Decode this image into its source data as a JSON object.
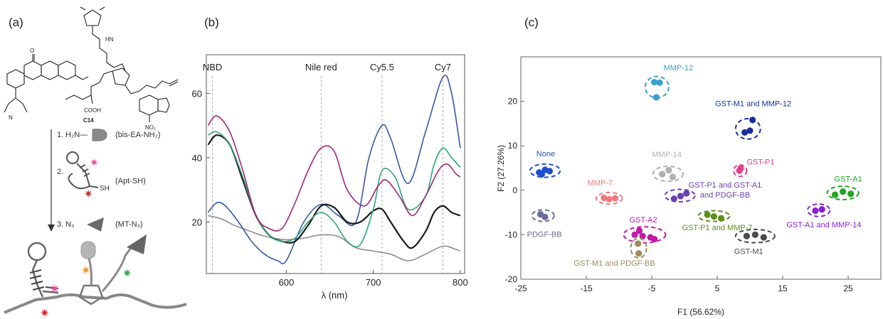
{
  "panels": {
    "a": {
      "label": "(a)",
      "molecule_label": "C14",
      "molecule_substituents": {
        "nh": "HN",
        "o": "O",
        "cooh": "COOH",
        "no2": "NO₂",
        "n": "N"
      },
      "steps": [
        {
          "index": "1.",
          "reagent_prefix": "H₂N—",
          "name": "(bis-EA-NH₂)"
        },
        {
          "index": "2.",
          "reagent_prefix": "",
          "name": "(Apt-SH)",
          "tag": "SH"
        },
        {
          "index": "3.",
          "reagent_prefix": "N₃",
          "name": "(MT-N₃)"
        }
      ]
    },
    "b": {
      "label": "(b)"
    },
    "c": {
      "label": "(c)"
    }
  },
  "colors": {
    "grey": "#8e8e8e",
    "black": "#1a1a1a",
    "green": "#2fa77c",
    "magenta": "#a4237f",
    "blue": "#3657a8",
    "pink_star": "#e0559a",
    "red_star": "#d42b2b",
    "orange_star": "#f0943a",
    "green_star": "#3aa54a"
  },
  "chart_data": [
    {
      "type": "line",
      "xlabel": "λ (nm)",
      "ylabel": "",
      "xlim": [
        508,
        805
      ],
      "ylim": [
        4,
        72
      ],
      "xticks": [
        600,
        700,
        800
      ],
      "yticks": [
        20,
        40,
        60
      ],
      "grid": false,
      "reference_lines": [
        {
          "label": "NBD",
          "x": 515
        },
        {
          "label": "Nile red",
          "x": 640
        },
        {
          "label": "Cy5.5",
          "x": 710
        },
        {
          "label": "Cy7",
          "x": 780
        }
      ],
      "series": [
        {
          "color": "#8e8e8e",
          "x": [
            510,
            525,
            540,
            555,
            570,
            585,
            600,
            620,
            640,
            660,
            680,
            700,
            720,
            740,
            760,
            780,
            795,
            800
          ],
          "y": [
            22,
            21,
            19,
            17.5,
            16,
            15,
            14.5,
            15,
            16,
            15.5,
            12,
            11,
            10,
            8,
            10,
            12.5,
            11.5,
            11
          ]
        },
        {
          "color": "#3657a8",
          "x": [
            510,
            520,
            530,
            545,
            560,
            575,
            590,
            600,
            620,
            640,
            660,
            680,
            695,
            710,
            720,
            740,
            760,
            780,
            790,
            800
          ],
          "y": [
            23,
            26,
            25,
            20,
            14,
            10,
            8,
            8,
            20,
            25.5,
            22,
            20,
            40,
            50,
            46,
            32,
            48,
            65,
            60,
            43
          ]
        },
        {
          "color": "#1a1a1a",
          "x": [
            510,
            520,
            535,
            550,
            565,
            580,
            595,
            610,
            625,
            640,
            655,
            670,
            685,
            700,
            710,
            720,
            735,
            745,
            760,
            770,
            780,
            790,
            800
          ],
          "y": [
            44,
            47,
            44,
            33,
            22,
            16,
            14,
            14,
            19,
            25,
            24.5,
            20,
            20,
            23.5,
            24,
            20,
            14,
            12,
            17,
            23,
            25,
            23,
            22
          ]
        },
        {
          "color": "#2fa77c",
          "x": [
            510,
            520,
            535,
            550,
            565,
            580,
            595,
            610,
            625,
            640,
            655,
            670,
            685,
            700,
            710,
            725,
            740,
            760,
            770,
            780,
            790,
            800
          ],
          "y": [
            47,
            48,
            44,
            34,
            22,
            16,
            14,
            15,
            20,
            23,
            20,
            14,
            13,
            24,
            36,
            34,
            24,
            28,
            38,
            43,
            40,
            37
          ]
        },
        {
          "color": "#a4237f",
          "x": [
            510,
            520,
            535,
            550,
            565,
            580,
            595,
            610,
            625,
            640,
            655,
            670,
            690,
            705,
            715,
            730,
            745,
            760,
            775,
            785,
            795,
            800
          ],
          "y": [
            50,
            53,
            48,
            36,
            22,
            18,
            18,
            26,
            36,
            43,
            42,
            30,
            25,
            31,
            33,
            28,
            22,
            28,
            36,
            38,
            35,
            34
          ]
        }
      ]
    },
    {
      "type": "scatter",
      "xlabel": "F1 (56.62%)",
      "ylabel": "F2 (27.26%)",
      "xlim": [
        -25,
        30
      ],
      "ylim": [
        -20,
        30
      ],
      "xticks": [
        -25,
        -15,
        -5,
        5,
        15,
        25
      ],
      "yticks": [
        -20,
        -10,
        0,
        10,
        20
      ],
      "groups": [
        {
          "name": "MMP-12",
          "color": "#3aa0c8",
          "cx": -4.2,
          "cy": 23.2,
          "rx": 1.8,
          "ry": 2.4,
          "points": [
            [
              -4.6,
              24.3
            ],
            [
              -3.8,
              24.2
            ],
            [
              -4.3,
              20.9
            ]
          ],
          "lx": -3.2,
          "ly": 27.0,
          "anchor": "start"
        },
        {
          "name": "GST-M1 and MMP-12",
          "color": "#1a2f9a",
          "cx": 9.7,
          "cy": 13.8,
          "rx": 1.9,
          "ry": 2.3,
          "points": [
            [
              9.2,
              13.0
            ],
            [
              10.0,
              13.4
            ],
            [
              10.4,
              15.8
            ]
          ],
          "lx": 10.5,
          "ly": 18.9,
          "anchor": "middle"
        },
        {
          "name": "None",
          "color": "#1f4fcc",
          "cx": -21.3,
          "cy": 4.4,
          "rx": 2.3,
          "ry": 1.5,
          "points": [
            [
              -22.2,
              4.0
            ],
            [
              -21.3,
              4.6
            ],
            [
              -20.6,
              4.3
            ],
            [
              -21.8,
              3.6
            ]
          ],
          "lx": -21.2,
          "ly": 7.6,
          "anchor": "middle"
        },
        {
          "name": "PDGF-BB",
          "color": "#6a6c9a",
          "cx": -21.6,
          "cy": -5.7,
          "rx": 1.7,
          "ry": 1.3,
          "points": [
            [
              -22.0,
              -5.4
            ],
            [
              -21.3,
              -6.0
            ]
          ],
          "lx": -21.4,
          "ly": -10.5,
          "anchor": "middle"
        },
        {
          "name": "MMP-7",
          "color": "#ef7a7a",
          "cx": -11.5,
          "cy": -1.8,
          "rx": 2.0,
          "ry": 1.3,
          "points": [
            [
              -12.3,
              -1.7
            ],
            [
              -11.5,
              -2.0
            ],
            [
              -10.6,
              -1.8
            ]
          ],
          "lx": -12.9,
          "ly": 1.1,
          "anchor": "middle"
        },
        {
          "name": "MMP-14",
          "color": "#b0b0b0",
          "cx": -2.5,
          "cy": 3.7,
          "rx": 2.3,
          "ry": 1.7,
          "points": [
            [
              -3.4,
              3.6
            ],
            [
              -2.4,
              4.5
            ],
            [
              -1.8,
              3.0
            ]
          ],
          "lx": -2.7,
          "ly": 7.5,
          "anchor": "middle"
        },
        {
          "name": "GST-P1",
          "color": "#e23f8f",
          "cx": 8.5,
          "cy": 4.4,
          "rx": 1.0,
          "ry": 1.3,
          "points": [
            [
              8.4,
              4.4
            ],
            [
              8.6,
              5.0
            ]
          ],
          "lx": 9.5,
          "ly": 5.8,
          "anchor": "start"
        },
        {
          "name": "GST-P1 and GST-A1|and PDGF-BB",
          "color": "#6a3fb0",
          "cx": -0.7,
          "cy": -1.2,
          "rx": 2.3,
          "ry": 1.4,
          "points": [
            [
              -1.6,
              -1.9
            ],
            [
              -0.6,
              -1.3
            ],
            [
              0.3,
              -0.7
            ]
          ],
          "lx": 6.2,
          "ly": 0.6,
          "anchor": "middle"
        },
        {
          "name": "GST-A1",
          "color": "#1ea51e",
          "cx": 24.2,
          "cy": -0.6,
          "rx": 2.4,
          "ry": 1.5,
          "points": [
            [
              23.0,
              -1.0
            ],
            [
              24.2,
              -0.3
            ],
            [
              25.4,
              -0.8
            ]
          ],
          "lx": 25.0,
          "ly": 2.0,
          "anchor": "middle"
        },
        {
          "name": "GST-A1 and MMP-14",
          "color": "#8a1fd6",
          "cx": 20.5,
          "cy": -4.5,
          "rx": 1.7,
          "ry": 1.4,
          "points": [
            [
              20.0,
              -4.6
            ],
            [
              21.0,
              -4.3
            ]
          ],
          "lx": 21.3,
          "ly": -8.3,
          "anchor": "middle"
        },
        {
          "name": "GST-P1 and MMP-7",
          "color": "#5e8f1a",
          "cx": 4.5,
          "cy": -5.8,
          "rx": 2.4,
          "ry": 1.2,
          "points": [
            [
              3.5,
              -5.5
            ],
            [
              4.5,
              -5.9
            ],
            [
              5.6,
              -6.3
            ]
          ],
          "lx": 5.0,
          "ly": -9.0,
          "anchor": "middle"
        },
        {
          "name": "GST-M1",
          "color": "#4a4a4a",
          "cx": 10.8,
          "cy": -10.3,
          "rx": 3.0,
          "ry": 1.5,
          "points": [
            [
              9.5,
              -10.3
            ],
            [
              10.8,
              -10.0
            ],
            [
              12.1,
              -10.6
            ]
          ],
          "lx": 9.8,
          "ly": -14.3,
          "anchor": "middle"
        },
        {
          "name": "GST-A2",
          "color": "#c21ba8",
          "cx": -6.1,
          "cy": -10.0,
          "rx": 3.2,
          "ry": 1.8,
          "points": [
            [
              -7.6,
              -10.0
            ],
            [
              -6.4,
              -10.3
            ],
            [
              -5.2,
              -10.6
            ],
            [
              -4.6,
              -11.0
            ],
            [
              -6.9,
              -9.1
            ]
          ],
          "lx": -6.3,
          "ly": -7.2,
          "anchor": "middle"
        },
        {
          "name": "GST-M1 and PDGF-BB",
          "color": "#a08a5e",
          "cx": -7.0,
          "cy": -13.0,
          "rx": 1.2,
          "ry": 2.2,
          "points": [
            [
              -7.1,
              -12.0
            ],
            [
              -7.0,
              -14.2
            ]
          ],
          "lx": -10.7,
          "ly": -17.0,
          "anchor": "middle"
        }
      ]
    }
  ]
}
